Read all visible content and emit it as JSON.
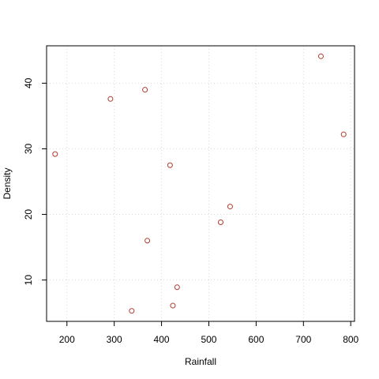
{
  "chart_data": {
    "type": "scatter",
    "title": "",
    "xlabel": "Rainfall",
    "ylabel": "Density",
    "xlim": [
      157,
      808
    ],
    "ylim": [
      3.7,
      45.7
    ],
    "xticks": [
      200,
      300,
      400,
      500,
      600,
      700,
      800
    ],
    "yticks": [
      10,
      20,
      30,
      40
    ],
    "grid": true,
    "point_color": "#b03a2e",
    "points": [
      {
        "x": 175,
        "y": 29.2
      },
      {
        "x": 292,
        "y": 37.6
      },
      {
        "x": 337,
        "y": 5.3
      },
      {
        "x": 365,
        "y": 39.0
      },
      {
        "x": 370,
        "y": 16.0
      },
      {
        "x": 418,
        "y": 27.5
      },
      {
        "x": 424,
        "y": 6.1
      },
      {
        "x": 433,
        "y": 8.9
      },
      {
        "x": 525,
        "y": 18.8
      },
      {
        "x": 545,
        "y": 21.2
      },
      {
        "x": 737,
        "y": 44.1
      },
      {
        "x": 785,
        "y": 32.2
      }
    ]
  }
}
